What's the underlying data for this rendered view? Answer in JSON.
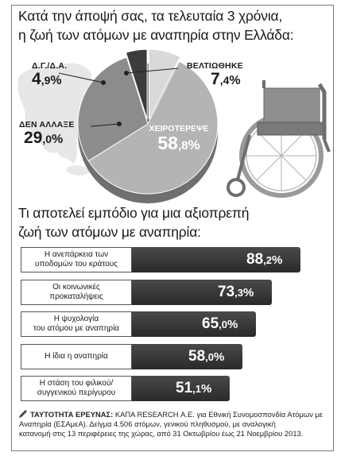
{
  "title_pie": {
    "line1": "Κατά την άποψή σας, τα τελευταία 3 χρόνια,",
    "line2": "η ζωή των ατόμων με αναπηρία στην Ελλάδα:"
  },
  "title_bars": {
    "line1": "Τι αποτελεί εμπόδιο για μια αξιοπρεπή",
    "line2": "ζωή των ατόμων με αναπηρία:"
  },
  "source": {
    "head": "ΤΑΥΤΟΤΗΤΑ ΕΡΕΥΝΑΣ:",
    "line1": " ΚΑΠΑ RESEARCH Α.Ε. για Εθνική Συνομοσπονδία Ατόμων με",
    "line2": "Αναπηρία (ΕΣΑμεΑ). Δείγμα 4.506 ατόμων, γενικού πληθυσμού, με αναλογική",
    "line3": "κατανομή στις 13 περιφέρειες της χώρας, από 31 Οκτωβρίου έως 21 Νοεμβρίου 2013."
  },
  "colors": {
    "pie_worse": "#b4b4b4",
    "pie_same": "#8c8c8c",
    "pie_better": "#d9d9d9",
    "pie_dk": "#3c3c3c",
    "bar": "#333333",
    "map": "#cfcfcf"
  },
  "chart_data": [
    {
      "type": "pie",
      "title": "Κατά την άποψή σας, τα τελευταία 3 χρόνια, η ζωή των ατόμων με αναπηρία στην Ελλάδα:",
      "slices": [
        {
          "label": "ΧΕΙΡΟΤΕΡΕΨΕ",
          "value": 58.8,
          "display_int": "58",
          "display_dec": ",8",
          "color": "#b4b4b4"
        },
        {
          "label": "ΔΕΝ ΑΛΛΑΞΕ",
          "value": 29.0,
          "display_int": "29",
          "display_dec": ",0",
          "color": "#8c8c8c"
        },
        {
          "label": "Δ.Γ./Δ.Α.",
          "value": 4.9,
          "display_int": "4",
          "display_dec": ",9",
          "color": "#3c3c3c"
        },
        {
          "label": "ΒΕΛΤΙΩΘΗΚΕ",
          "value": 7.4,
          "display_int": "7",
          "display_dec": ",4",
          "color": "#d9d9d9"
        }
      ],
      "unit": "%"
    },
    {
      "type": "bar",
      "title": "Τι αποτελεί εμπόδιο για μια αξιοπρεπή ζωή των ατόμων με αναπηρία:",
      "categories": [
        [
          "Η ανεπάρκεια των",
          "υποδομών του κράτους"
        ],
        [
          "Οι κοινωνικές",
          "προκαταλήψεις"
        ],
        [
          "Η ψυχολογία",
          "του ατόμου με αναπηρία"
        ],
        [
          "Η ίδια η αναπηρία"
        ],
        [
          "Η στάση του φιλικού/",
          "συγγενικού περίγυρου"
        ]
      ],
      "values": [
        88.2,
        73.3,
        65.0,
        58.0,
        51.1
      ],
      "display_int": [
        "88",
        "73",
        "65",
        "58",
        "51"
      ],
      "display_dec": [
        ",2",
        ",3",
        ",0",
        ",0",
        ",1"
      ],
      "unit": "%",
      "xlim": [
        0,
        100
      ]
    }
  ]
}
